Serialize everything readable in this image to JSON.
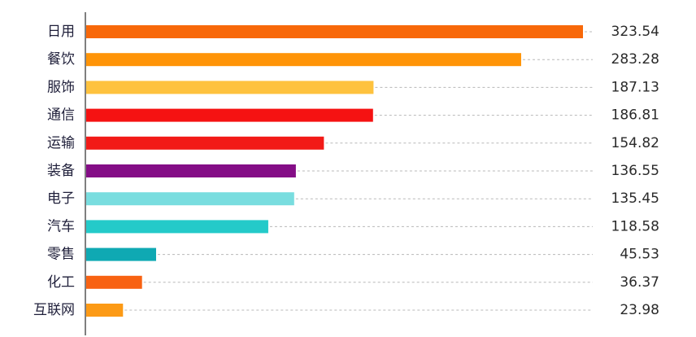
{
  "chart_data": {
    "type": "bar",
    "orientation": "horizontal",
    "title": "",
    "xlabel": "",
    "ylabel": "",
    "categories": [
      "日用",
      "餐饮",
      "服饰",
      "通信",
      "运输",
      "装备",
      "电子",
      "汽车",
      "零售",
      "化工",
      "互联网"
    ],
    "values": [
      323.54,
      283.28,
      187.13,
      186.81,
      154.82,
      136.55,
      135.45,
      118.58,
      45.53,
      36.37,
      23.98
    ],
    "value_labels": [
      "323.54",
      "283.28",
      "187.13",
      "186.81",
      "154.82",
      "136.55",
      "135.45",
      "118.58",
      "45.53",
      "36.37",
      "23.98"
    ],
    "colors": [
      "#F86809",
      "#FF9407",
      "#FEC23E",
      "#F51212",
      "#F21A17",
      "#840D86",
      "#79DDDF",
      "#24CAC9",
      "#0FA9B3",
      "#F86212",
      "#FC9A16"
    ],
    "xlim": [
      0,
      323.54
    ],
    "grid": false,
    "legend": "none"
  }
}
